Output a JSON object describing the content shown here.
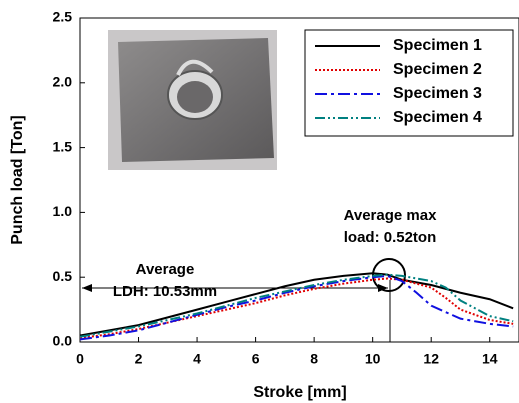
{
  "chart_data": {
    "type": "line",
    "xlabel": "Stroke [mm]",
    "ylabel": "Punch load [Ton]",
    "xlim": [
      0,
      15
    ],
    "xticks": [
      0,
      2,
      4,
      6,
      8,
      10,
      12,
      14
    ],
    "ylim": [
      0,
      2.5
    ],
    "yticks": [
      {
        "value": 0,
        "label": "0.0"
      },
      0.5,
      {
        "value": 1,
        "label": "1.0"
      },
      1.5,
      {
        "value": 2,
        "label": "2.0"
      },
      2.5
    ],
    "legend": "upper right",
    "annotations": [
      "Average max",
      "load: 0.52ton",
      "Average",
      "LDH: 10.53mm"
    ],
    "series": [
      {
        "name": "Specimen 1",
        "color": "#000000",
        "dash": "none",
        "x": [
          0,
          1,
          2,
          3,
          4,
          5,
          6,
          7,
          8,
          9,
          10,
          10.5,
          11,
          12,
          13,
          14,
          14.8
        ],
        "values": [
          0.05,
          0.09,
          0.13,
          0.19,
          0.25,
          0.31,
          0.37,
          0.43,
          0.48,
          0.51,
          0.53,
          0.52,
          0.48,
          0.44,
          0.38,
          0.33,
          0.26
        ]
      },
      {
        "name": "Specimen 2",
        "color": "#e00000",
        "dash": "2,2",
        "x": [
          0,
          1,
          2,
          3,
          4,
          5,
          6,
          7,
          8,
          9,
          10,
          10.5,
          11,
          12,
          12.5,
          13,
          14,
          14.8
        ],
        "values": [
          0.03,
          0.06,
          0.1,
          0.15,
          0.2,
          0.25,
          0.3,
          0.36,
          0.41,
          0.45,
          0.48,
          0.49,
          0.48,
          0.42,
          0.34,
          0.25,
          0.17,
          0.14
        ]
      },
      {
        "name": "Specimen 3",
        "color": "#1010e0",
        "dash": "12,4,3,4",
        "x": [
          0,
          1,
          2,
          3,
          4,
          5,
          6,
          7,
          8,
          9,
          10,
          10.5,
          11,
          11.5,
          12,
          13,
          14,
          14.8
        ],
        "values": [
          0.02,
          0.05,
          0.09,
          0.15,
          0.21,
          0.27,
          0.32,
          0.38,
          0.43,
          0.47,
          0.5,
          0.51,
          0.47,
          0.38,
          0.28,
          0.18,
          0.14,
          0.12
        ]
      },
      {
        "name": "Specimen 4",
        "color": "#008080",
        "dash": "10,3,2,3,2,3",
        "x": [
          0,
          1,
          2,
          3,
          4,
          5,
          6,
          7,
          8,
          9,
          10,
          10.5,
          11,
          12,
          12.5,
          13,
          14,
          14.8
        ],
        "values": [
          0.04,
          0.08,
          0.12,
          0.17,
          0.22,
          0.28,
          0.34,
          0.39,
          0.44,
          0.48,
          0.51,
          0.52,
          0.51,
          0.47,
          0.42,
          0.32,
          0.2,
          0.16
        ]
      }
    ]
  }
}
